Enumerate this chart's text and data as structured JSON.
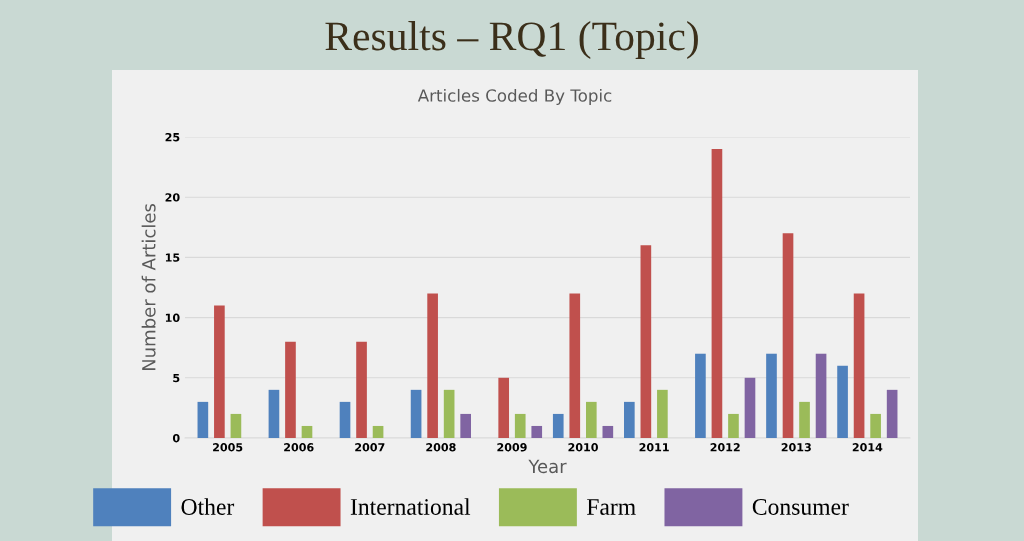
{
  "chart_data": {
    "type": "bar",
    "title": "Results – RQ1 (Topic)",
    "subtitle": "Articles Coded By Topic",
    "xlabel": "Year",
    "ylabel": "Number of Articles",
    "categories": [
      "2005",
      "2006",
      "2007",
      "2008",
      "2009",
      "2010",
      "2011",
      "2012",
      "2013",
      "2014"
    ],
    "series": [
      {
        "name": "Other",
        "color": "#4f81bd",
        "values": [
          3,
          4,
          3,
          4,
          0,
          2,
          3,
          7,
          7,
          6
        ]
      },
      {
        "name": "International",
        "color": "#c0504d",
        "values": [
          11,
          8,
          8,
          12,
          5,
          12,
          16,
          24,
          17,
          12
        ]
      },
      {
        "name": "Farm",
        "color": "#9bbb59",
        "values": [
          2,
          1,
          1,
          4,
          2,
          3,
          4,
          2,
          3,
          2
        ]
      },
      {
        "name": "Consumer",
        "color": "#8064a2",
        "values": [
          0,
          0,
          0,
          2,
          1,
          1,
          0,
          5,
          7,
          4
        ]
      }
    ],
    "ylim": [
      0,
      25
    ],
    "yticks": [
      0,
      5,
      10,
      15,
      20,
      25
    ],
    "grid": "y",
    "legend": "bottom"
  }
}
